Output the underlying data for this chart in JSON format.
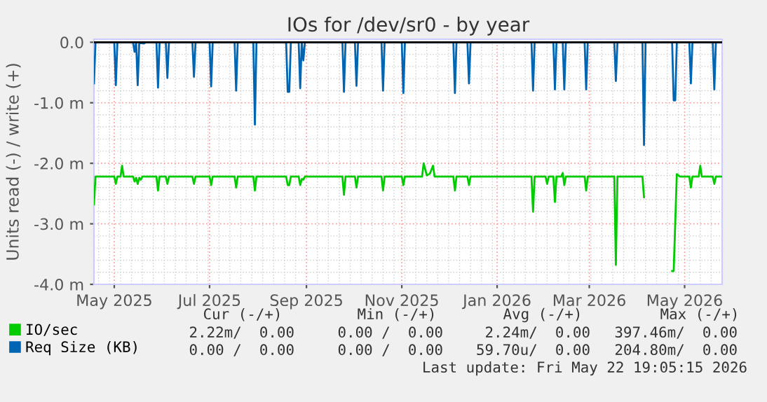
{
  "chart_data": {
    "type": "line",
    "title": "IOs for /dev/sr0 - by year",
    "ylabel": "Units read (-) / write (+)",
    "xlim": [
      "2025-04-18",
      "2026-05-25"
    ],
    "xticks": [
      {
        "value": "2025-05-01",
        "label": "May 2025"
      },
      {
        "value": "2025-07-01",
        "label": "Jul 2025"
      },
      {
        "value": "2025-09-01",
        "label": "Sep 2025"
      },
      {
        "value": "2025-11-01",
        "label": "Nov 2025"
      },
      {
        "value": "2026-01-01",
        "label": "Jan 2026"
      },
      {
        "value": "2026-03-01",
        "label": "Mar 2026"
      },
      {
        "value": "2026-05-01",
        "label": "May 2026"
      }
    ],
    "ylim": [
      -4,
      0.05
    ],
    "yticks": [
      {
        "value": 0,
        "label": "0.0"
      },
      {
        "value": -1,
        "label": "-1.0 m"
      },
      {
        "value": -2,
        "label": "-2.0 m"
      },
      {
        "value": -3,
        "label": "-3.0 m"
      },
      {
        "value": -4,
        "label": "-4.0 m"
      }
    ],
    "grid": true,
    "legend": "bottom",
    "line_style": "solid",
    "ref_lines": [
      {
        "axis": "y",
        "value": 0,
        "color": "#000000"
      }
    ],
    "series": [
      {
        "name": "IO/sec",
        "color": "#00cc00",
        "x": [
          "2025-04-18",
          "2025-04-19",
          "2025-05-01",
          "2025-05-02",
          "2025-05-03",
          "2025-05-05",
          "2025-05-06",
          "2025-05-07",
          "2025-05-13",
          "2025-05-14",
          "2025-05-15",
          "2025-05-16",
          "2025-05-17",
          "2025-05-18",
          "2025-05-19",
          "2025-05-28",
          "2025-05-29",
          "2025-05-30",
          "2025-06-03",
          "2025-06-04",
          "2025-06-05",
          "2025-06-20",
          "2025-06-21",
          "2025-06-22",
          "2025-07-01",
          "2025-07-02",
          "2025-07-03",
          "2025-07-17",
          "2025-07-18",
          "2025-07-19",
          "2025-07-29",
          "2025-07-30",
          "2025-07-31",
          "2025-08-19",
          "2025-08-20",
          "2025-08-21",
          "2025-08-22",
          "2025-08-27",
          "2025-08-28",
          "2025-08-29",
          "2025-08-30",
          "2025-08-31",
          "2025-09-24",
          "2025-09-25",
          "2025-09-26",
          "2025-10-02",
          "2025-10-03",
          "2025-10-04",
          "2025-10-19",
          "2025-10-20",
          "2025-10-21",
          "2025-11-01",
          "2025-11-02",
          "2025-11-03",
          "2025-11-14",
          "2025-11-15",
          "2025-11-17",
          "2025-11-19",
          "2025-11-21",
          "2025-11-22",
          "2025-12-04",
          "2025-12-05",
          "2025-12-06",
          "2025-12-13",
          "2025-12-14",
          "2025-12-15",
          "2026-01-23",
          "2026-01-24",
          "2026-01-25",
          "2026-02-01",
          "2026-02-02",
          "2026-02-03",
          "2026-02-06",
          "2026-02-07",
          "2026-02-08",
          "2026-02-11",
          "2026-02-12",
          "2026-02-13",
          "2026-02-14",
          "2026-02-26",
          "2026-02-27",
          "2026-02-28",
          "2026-03-17",
          "2026-03-18",
          "2026-03-19",
          "2026-04-04",
          "2026-04-05",
          "2026-04-14",
          "2026-04-23",
          "2026-04-24",
          "2026-04-26",
          "2026-04-28",
          "2026-05-04",
          "2026-05-05",
          "2026-05-06",
          "2026-05-10",
          "2026-05-11",
          "2026-05-12",
          "2026-05-19",
          "2026-05-20",
          "2026-05-21",
          "2026-05-25"
        ],
        "values": [
          -2.68,
          -2.22,
          -2.22,
          -2.34,
          -2.22,
          -2.22,
          -2.04,
          -2.22,
          -2.22,
          -2.3,
          -2.24,
          -2.34,
          -2.24,
          -2.27,
          -2.22,
          -2.22,
          -2.45,
          -2.22,
          -2.22,
          -2.34,
          -2.22,
          -2.22,
          -2.34,
          -2.22,
          -2.22,
          -2.36,
          -2.22,
          -2.22,
          -2.4,
          -2.22,
          -2.22,
          -2.45,
          -2.22,
          -2.22,
          -2.36,
          -2.36,
          -2.22,
          -2.22,
          -2.36,
          -2.26,
          -2.27,
          -2.22,
          -2.22,
          -2.52,
          -2.22,
          -2.22,
          -2.4,
          -2.22,
          -2.22,
          -2.45,
          -2.22,
          -2.22,
          -2.36,
          -2.22,
          -2.22,
          -2.0,
          -2.2,
          -2.17,
          -2.04,
          -2.22,
          -2.22,
          -2.45,
          -2.22,
          -2.22,
          -2.36,
          -2.22,
          -2.22,
          -2.8,
          -2.22,
          -2.22,
          -2.34,
          -2.22,
          -2.22,
          -2.64,
          -2.22,
          -2.22,
          -2.16,
          -2.36,
          -2.22,
          -2.22,
          -2.45,
          -2.22,
          -2.22,
          -3.68,
          -2.22,
          -2.22,
          -2.56,
          null,
          -3.78,
          -3.78,
          -2.18,
          -2.22,
          -2.22,
          -2.4,
          -2.22,
          -2.22,
          -2.04,
          -2.22,
          -2.22,
          -2.34,
          -2.22,
          -2.22
        ]
      },
      {
        "name": "Req Size (KB)",
        "color": "#0066b3",
        "x": [
          "2025-04-18",
          "2025-04-19",
          "2025-05-01",
          "2025-05-02",
          "2025-05-03",
          "2025-05-13",
          "2025-05-14",
          "2025-05-15",
          "2025-05-16",
          "2025-05-17",
          "2025-05-20",
          "2025-05-21",
          "2025-05-28",
          "2025-05-29",
          "2025-05-30",
          "2025-06-03",
          "2025-06-04",
          "2025-06-05",
          "2025-06-20",
          "2025-06-21",
          "2025-06-22",
          "2025-07-01",
          "2025-07-02",
          "2025-07-03",
          "2025-07-17",
          "2025-07-18",
          "2025-07-19",
          "2025-07-29",
          "2025-07-30",
          "2025-07-31",
          "2025-08-19",
          "2025-08-20",
          "2025-08-21",
          "2025-08-22",
          "2025-08-27",
          "2025-08-28",
          "2025-08-29",
          "2025-08-30",
          "2025-08-31",
          "2025-09-24",
          "2025-09-25",
          "2025-09-26",
          "2025-10-02",
          "2025-10-03",
          "2025-10-04",
          "2025-10-19",
          "2025-10-20",
          "2025-10-21",
          "2025-11-01",
          "2025-11-02",
          "2025-11-03",
          "2025-12-04",
          "2025-12-05",
          "2025-12-06",
          "2025-12-13",
          "2025-12-14",
          "2025-12-15",
          "2026-01-23",
          "2026-01-24",
          "2026-01-25",
          "2026-02-06",
          "2026-02-07",
          "2026-02-08",
          "2026-02-12",
          "2026-02-13",
          "2026-02-14",
          "2026-02-26",
          "2026-02-27",
          "2026-02-28",
          "2026-03-17",
          "2026-03-18",
          "2026-03-19",
          "2026-04-04",
          "2026-04-05",
          "2026-04-06",
          "2026-04-23",
          "2026-04-24",
          "2026-04-25",
          "2026-04-26",
          "2026-05-04",
          "2026-05-05",
          "2026-05-06",
          "2026-05-19",
          "2026-05-20",
          "2026-05-21",
          "2026-05-25"
        ],
        "values": [
          -0.68,
          0,
          0,
          -0.71,
          0,
          0,
          -0.16,
          0,
          -0.71,
          0,
          -0.02,
          0,
          0,
          -0.75,
          0,
          0,
          -0.59,
          0,
          0,
          -0.57,
          0,
          0,
          -0.73,
          0,
          0,
          -0.8,
          0,
          0,
          -1.36,
          0,
          0,
          -0.82,
          -0.82,
          0,
          0,
          -0.76,
          0,
          -0.3,
          0,
          0,
          -0.82,
          0,
          0,
          -0.72,
          0,
          0,
          -0.8,
          0,
          0,
          -0.84,
          0,
          0,
          -0.84,
          0,
          0,
          -0.68,
          0,
          0,
          -0.8,
          0,
          0,
          -0.78,
          0,
          0,
          -0.78,
          0,
          0,
          -0.78,
          0,
          0,
          -0.64,
          0,
          0,
          -1.7,
          0,
          0,
          -0.96,
          -0.96,
          0,
          0,
          -0.68,
          0,
          0,
          -0.78,
          0,
          0
        ]
      }
    ],
    "annotations": [
      "Cur (-/+)",
      "Min (-/+)",
      "Avg (-/+)",
      "Max (-/+)",
      "2.22m/  0.00",
      "0.00 /  0.00",
      "2.24m/  0.00",
      "397.46m/  0.00",
      "0.00 /  0.00",
      "0.00 /  0.00",
      "59.70u/  0.00",
      "204.80m/  0.00",
      "Last update: Fri May 22 19:05:15 2026"
    ]
  }
}
